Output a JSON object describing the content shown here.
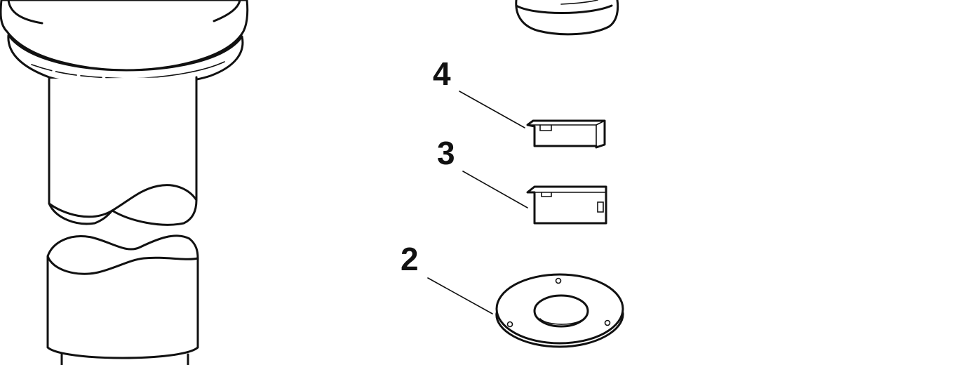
{
  "callouts": {
    "c4": "4",
    "c3": "3",
    "c2": "2"
  },
  "colors": {
    "line": "#111111",
    "background": "#ffffff"
  }
}
